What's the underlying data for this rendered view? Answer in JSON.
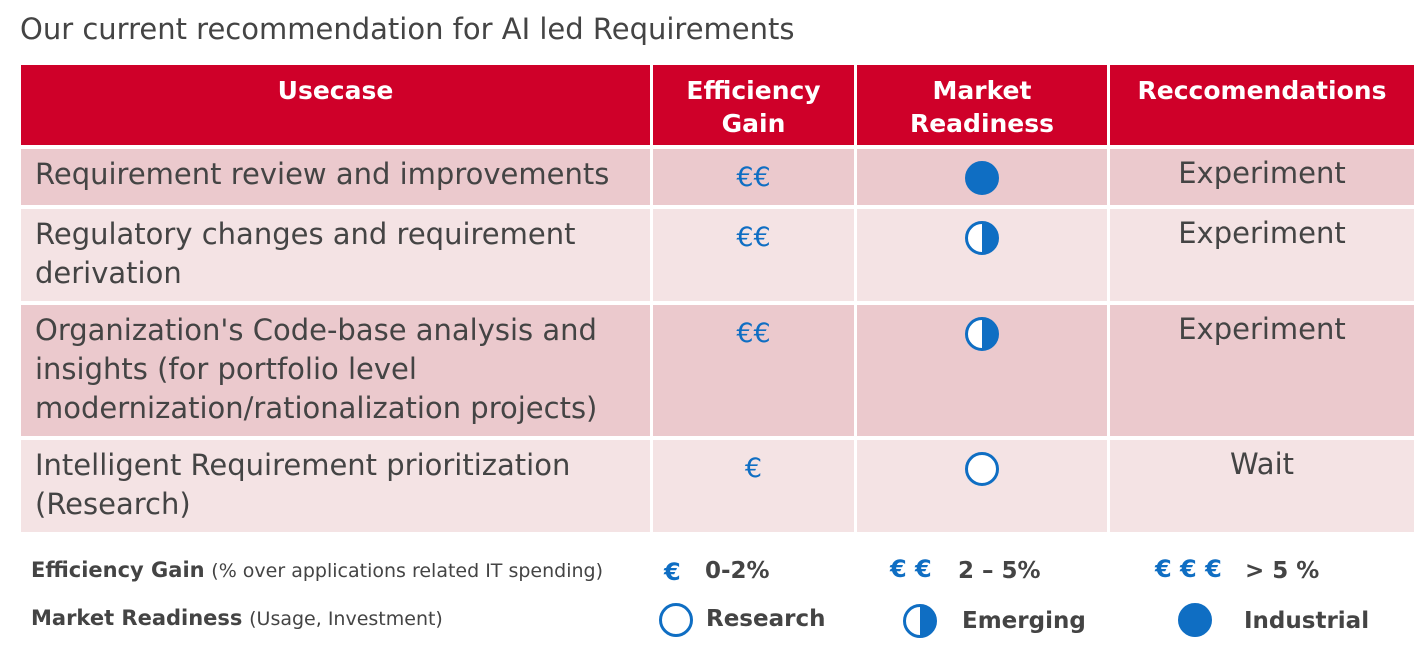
{
  "title": "Our current recommendation for AI led Requirements",
  "colors": {
    "header_red": "#cf0029",
    "row_dark": "#ebc9cd",
    "row_light": "#f4e3e4",
    "accent_blue": "#0f6ec3"
  },
  "table": {
    "headers": {
      "usecase": "Usecase",
      "efficiency_gain": "Efficiency Gain",
      "market_readiness": "Market Readiness",
      "recommendations": "Reccomendations"
    },
    "rows": [
      {
        "usecase": "Requirement review and improvements",
        "efficiency": "€€",
        "readiness": "industrial-full-circle-icon",
        "recommendation": "Experiment"
      },
      {
        "usecase": "Regulatory changes and requirement derivation",
        "efficiency": "€€",
        "readiness": "emerging-half-circle-icon",
        "recommendation": "Experiment"
      },
      {
        "usecase": "Organization's Code-base analysis and insights (for portfolio level modernization/rationalization projects)",
        "efficiency": "€€",
        "readiness": "emerging-half-circle-icon",
        "recommendation": "Experiment"
      },
      {
        "usecase": "Intelligent Requirement prioritization (Research)",
        "efficiency": "€",
        "readiness": "research-empty-circle-icon",
        "recommendation": "Wait"
      }
    ]
  },
  "legend": {
    "efficiency": {
      "label": "Efficiency Gain",
      "sub": "(% over applications related IT spending)",
      "levels": [
        {
          "symbol": "€",
          "text": "0-2%"
        },
        {
          "symbol": "€ €",
          "text": "2 – 5%"
        },
        {
          "symbol": "€ € €",
          "text": "> 5 %"
        }
      ]
    },
    "readiness": {
      "label": "Market Readiness",
      "sub": "(Usage, Investment)",
      "levels": [
        {
          "icon": "research-empty-circle-icon",
          "text": "Research"
        },
        {
          "icon": "emerging-half-circle-icon",
          "text": "Emerging"
        },
        {
          "icon": "industrial-full-circle-icon",
          "text": "Industrial"
        }
      ]
    }
  }
}
